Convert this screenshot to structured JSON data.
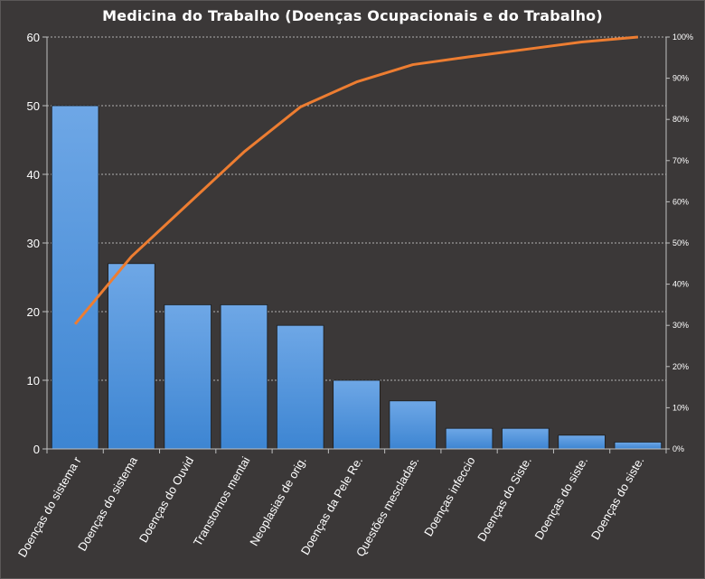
{
  "chart_data": {
    "type": "bar",
    "title": "Medicina do Trabalho (Doenças Ocupacionais e do Trabalho)",
    "categories": [
      "Doenças do sistema r",
      "Doenças do sistema",
      "Doenças do Ouvid",
      "Transtornos mentai",
      "Neoplasias de orig.",
      "Doenças da Pele Re.",
      "Questões mescladas.",
      "Doenças infeccio",
      "Doenças do Siste.",
      "Doenças do siste.",
      "Doenças do siste."
    ],
    "values": [
      50,
      27,
      21,
      21,
      18,
      10,
      7,
      3,
      3,
      2,
      1
    ],
    "cumulative_percent": [
      30.3,
      46.7,
      59.4,
      72.1,
      83.0,
      89.1,
      93.3,
      95.2,
      97.0,
      98.8,
      100
    ],
    "ylim": [
      0,
      60
    ],
    "y2lim": [
      0,
      100
    ],
    "yticks": [
      "0",
      "10",
      "20",
      "30",
      "40",
      "50",
      "60"
    ],
    "y2ticks": [
      "0%",
      "10%",
      "20%",
      "30%",
      "40%",
      "50%",
      "60%",
      "70%",
      "80%",
      "90%",
      "100%"
    ],
    "grid": true,
    "bar_color": "#4a8fd8",
    "line_color": "#ed7d31",
    "background": "#3b3838"
  }
}
